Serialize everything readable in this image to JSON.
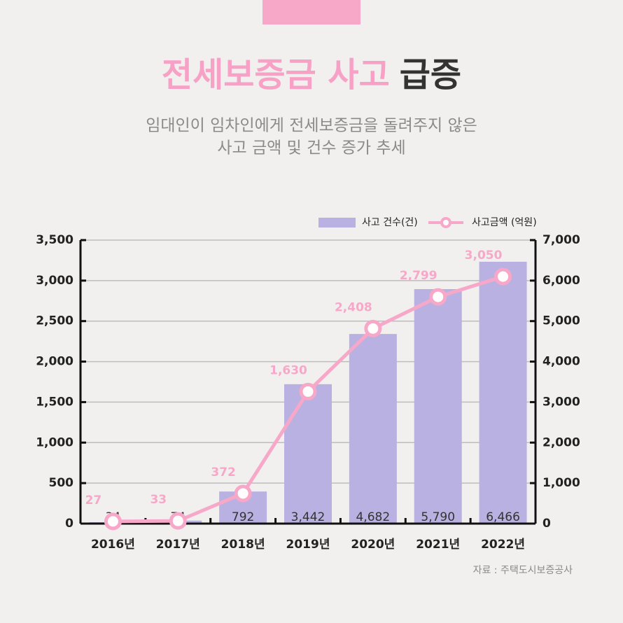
{
  "chart_data": {
    "type": "bar",
    "title": {
      "highlight": "전세보증금 사고",
      "rest": "급증"
    },
    "subtitle": [
      "임대인이 임차인에게 전세보증금을 돌려주지 않은",
      "사고 금액 및 건수 증가 추세"
    ],
    "source": "자료 : 주택도시보증공사",
    "categories": [
      "2016년",
      "2017년",
      "2018년",
      "2019년",
      "2020년",
      "2021년",
      "2022년"
    ],
    "series": [
      {
        "name": "사고 건수(건)",
        "type": "bar",
        "axis": "y2",
        "color": "#b9b1e1",
        "values": [
          34,
          74,
          792,
          3442,
          4682,
          5790,
          6466
        ],
        "value_labels": [
          "34",
          "74",
          "792",
          "3,442",
          "4,682",
          "5,790",
          "6,466"
        ]
      },
      {
        "name": "사고금액 (억원)",
        "type": "line",
        "color": "#f7a8c9",
        "values": [
          27,
          33,
          372,
          1630,
          2408,
          2799,
          3050
        ],
        "value_labels": [
          "27",
          "33",
          "372",
          "1,630",
          "2,408",
          "2,799",
          "3,050"
        ]
      }
    ],
    "ylim": [
      0,
      3500
    ],
    "yticks": [
      0,
      500,
      {
        "value": 1000,
        "label": "1,000"
      },
      {
        "value": 1500,
        "label": "1,500"
      },
      {
        "value": 2000,
        "label": "2,000"
      },
      {
        "value": 2500,
        "label": "2,500"
      },
      {
        "value": 3000,
        "label": "3,000"
      },
      {
        "value": 3500,
        "label": "3,500"
      }
    ],
    "y2lim": [
      0,
      7000
    ],
    "y2ticks": [
      0,
      {
        "value": 1000,
        "label": "1,000"
      },
      {
        "value": 2000,
        "label": "2,000"
      },
      {
        "value": 3000,
        "label": "3,000"
      },
      {
        "value": 4000,
        "label": "4,000"
      },
      {
        "value": 5000,
        "label": "5,000"
      },
      {
        "value": 6000,
        "label": "6,000"
      },
      {
        "value": 7000,
        "label": "7,000"
      }
    ],
    "grid": true,
    "legend": "top-right"
  }
}
